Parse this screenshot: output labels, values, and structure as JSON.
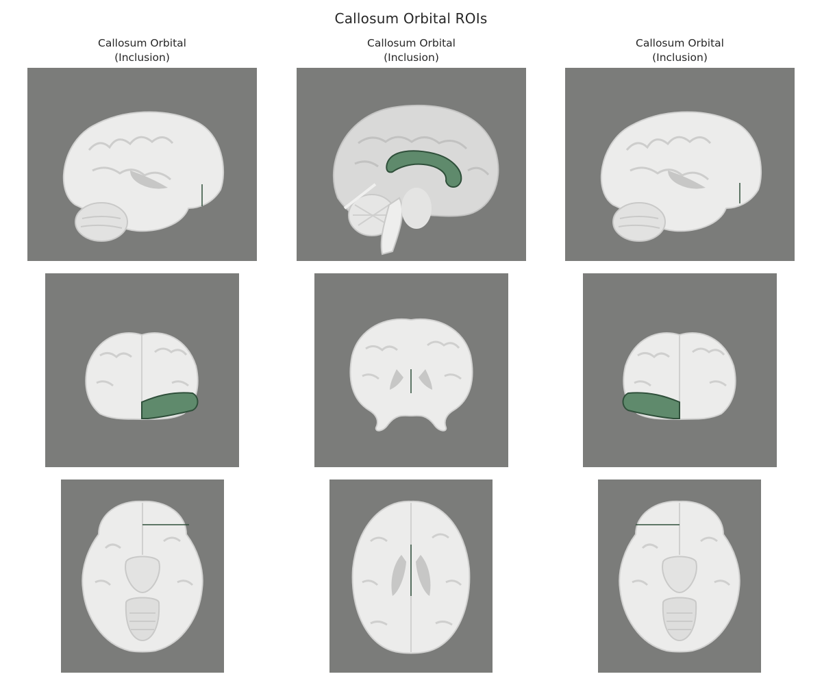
{
  "figure": {
    "title": "Callosum Orbital ROIs"
  },
  "columns": [
    {
      "title_line1": "Callosum Orbital",
      "title_line2": "(Inclusion)"
    },
    {
      "title_line1": "Callosum Orbital",
      "title_line2": "(Inclusion)"
    },
    {
      "title_line1": "Callosum Orbital",
      "title_line2": "(Inclusion)"
    }
  ],
  "rows": [
    "sagittal",
    "coronal",
    "axial"
  ],
  "colors": {
    "background": "#7b7c7a",
    "brain_white": "#ececeb",
    "brain_gray": "#c9c9c8",
    "roi_fill": "#5f8a6c",
    "roi_line": "#2f4f3a"
  }
}
